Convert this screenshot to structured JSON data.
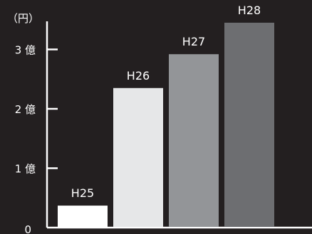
{
  "chart_data": {
    "type": "bar",
    "unit_label": "（円）",
    "categories": [
      "H25",
      "H26",
      "H27",
      "H28"
    ],
    "values": [
      0.37,
      2.35,
      2.92,
      3.45
    ],
    "bar_colors": [
      "#ffffff",
      "#e6e7e8",
      "#939598",
      "#6d6e71"
    ],
    "ylim": [
      0,
      3.5
    ],
    "y_ticks": [
      {
        "value": 0,
        "label": "0"
      },
      {
        "value": 1,
        "label": "1 億"
      },
      {
        "value": 2,
        "label": "2 億"
      },
      {
        "value": 3,
        "label": "3 億"
      }
    ],
    "axis_color": "#ffffff",
    "background": "#231f20",
    "grid": false,
    "legend": "none"
  }
}
